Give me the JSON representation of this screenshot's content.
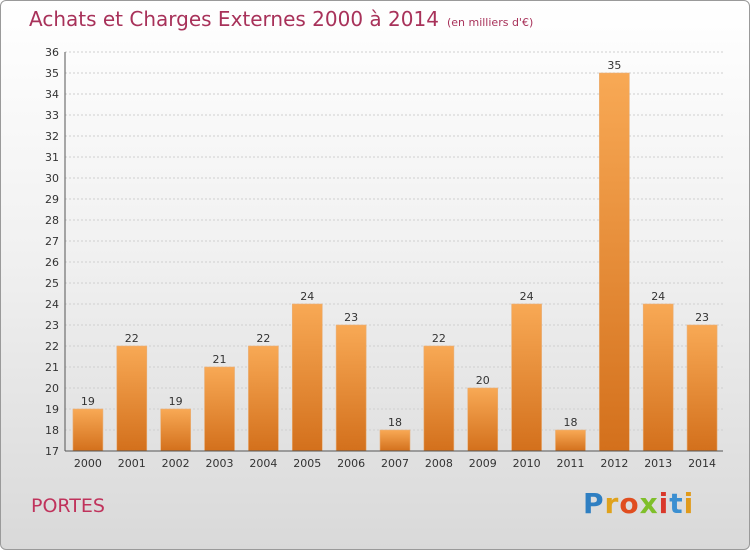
{
  "header": {
    "title": "Achats et Charges Externes 2000 à 2014",
    "subtitle": "(en milliers d'€)"
  },
  "footer": {
    "town": "PORTES",
    "logo": [
      "P",
      "r",
      "o",
      "x",
      "i",
      "t",
      "i"
    ],
    "logo_colors": [
      "#2f7fc2",
      "#e0a21b",
      "#e04d1f",
      "#7fbf2a",
      "#d9382b",
      "#3b8fd1",
      "#e09a1b"
    ]
  },
  "colors": {
    "bar_light": "#f8a955",
    "bar_dark": "#d3701c",
    "grid": "#cfcfcf"
  },
  "chart_data": {
    "type": "bar",
    "categories": [
      "2000",
      "2001",
      "2002",
      "2003",
      "2004",
      "2005",
      "2006",
      "2007",
      "2008",
      "2009",
      "2010",
      "2011",
      "2012",
      "2013",
      "2014"
    ],
    "values": [
      19,
      22,
      19,
      21,
      22,
      24,
      23,
      18,
      22,
      20,
      24,
      18,
      35,
      24,
      23
    ],
    "title": "Achats et Charges Externes 2000 à 2014",
    "subtitle": "(en milliers d'€)",
    "ylim": [
      17,
      36
    ],
    "yticks": [
      17,
      18,
      19,
      20,
      21,
      22,
      23,
      24,
      25,
      26,
      27,
      28,
      29,
      30,
      31,
      32,
      33,
      34,
      35,
      36
    ],
    "grid": true
  }
}
